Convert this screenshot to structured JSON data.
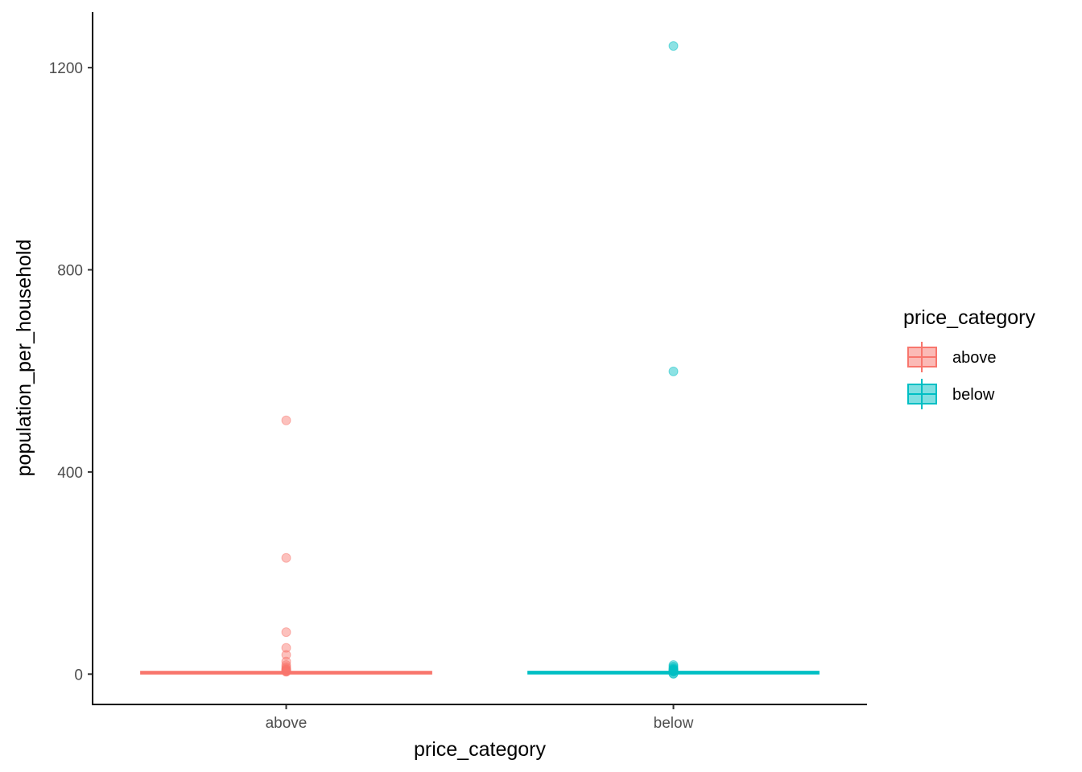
{
  "chart_data": {
    "type": "boxplot",
    "xlabel": "price_category",
    "ylabel": "population_per_household",
    "categories": [
      "above",
      "below"
    ],
    "y_ticks": [
      0,
      400,
      800,
      1200
    ],
    "ylim": [
      -60,
      1310
    ],
    "grid": false,
    "legend": {
      "title": "price_category",
      "position": "right",
      "entries": [
        "above",
        "below"
      ]
    },
    "colors": {
      "above": "#F8766D",
      "below": "#00BFC4"
    },
    "series": [
      {
        "name": "above",
        "box": {
          "min": 0.7,
          "q1": 2.4,
          "median": 2.8,
          "q3": 3.3,
          "max": 4.6
        },
        "outliers": [
          502,
          230,
          83,
          52,
          38,
          25,
          18,
          14,
          11,
          9,
          8,
          7,
          6,
          5,
          4.8
        ]
      },
      {
        "name": "below",
        "box": {
          "min": 0.7,
          "q1": 2.5,
          "median": 3.0,
          "q3": 3.4,
          "max": 4.9
        },
        "outliers": [
          1243,
          599,
          18,
          15,
          12,
          10,
          9,
          8,
          7,
          6,
          5.5,
          5,
          1,
          0.7
        ]
      }
    ]
  }
}
